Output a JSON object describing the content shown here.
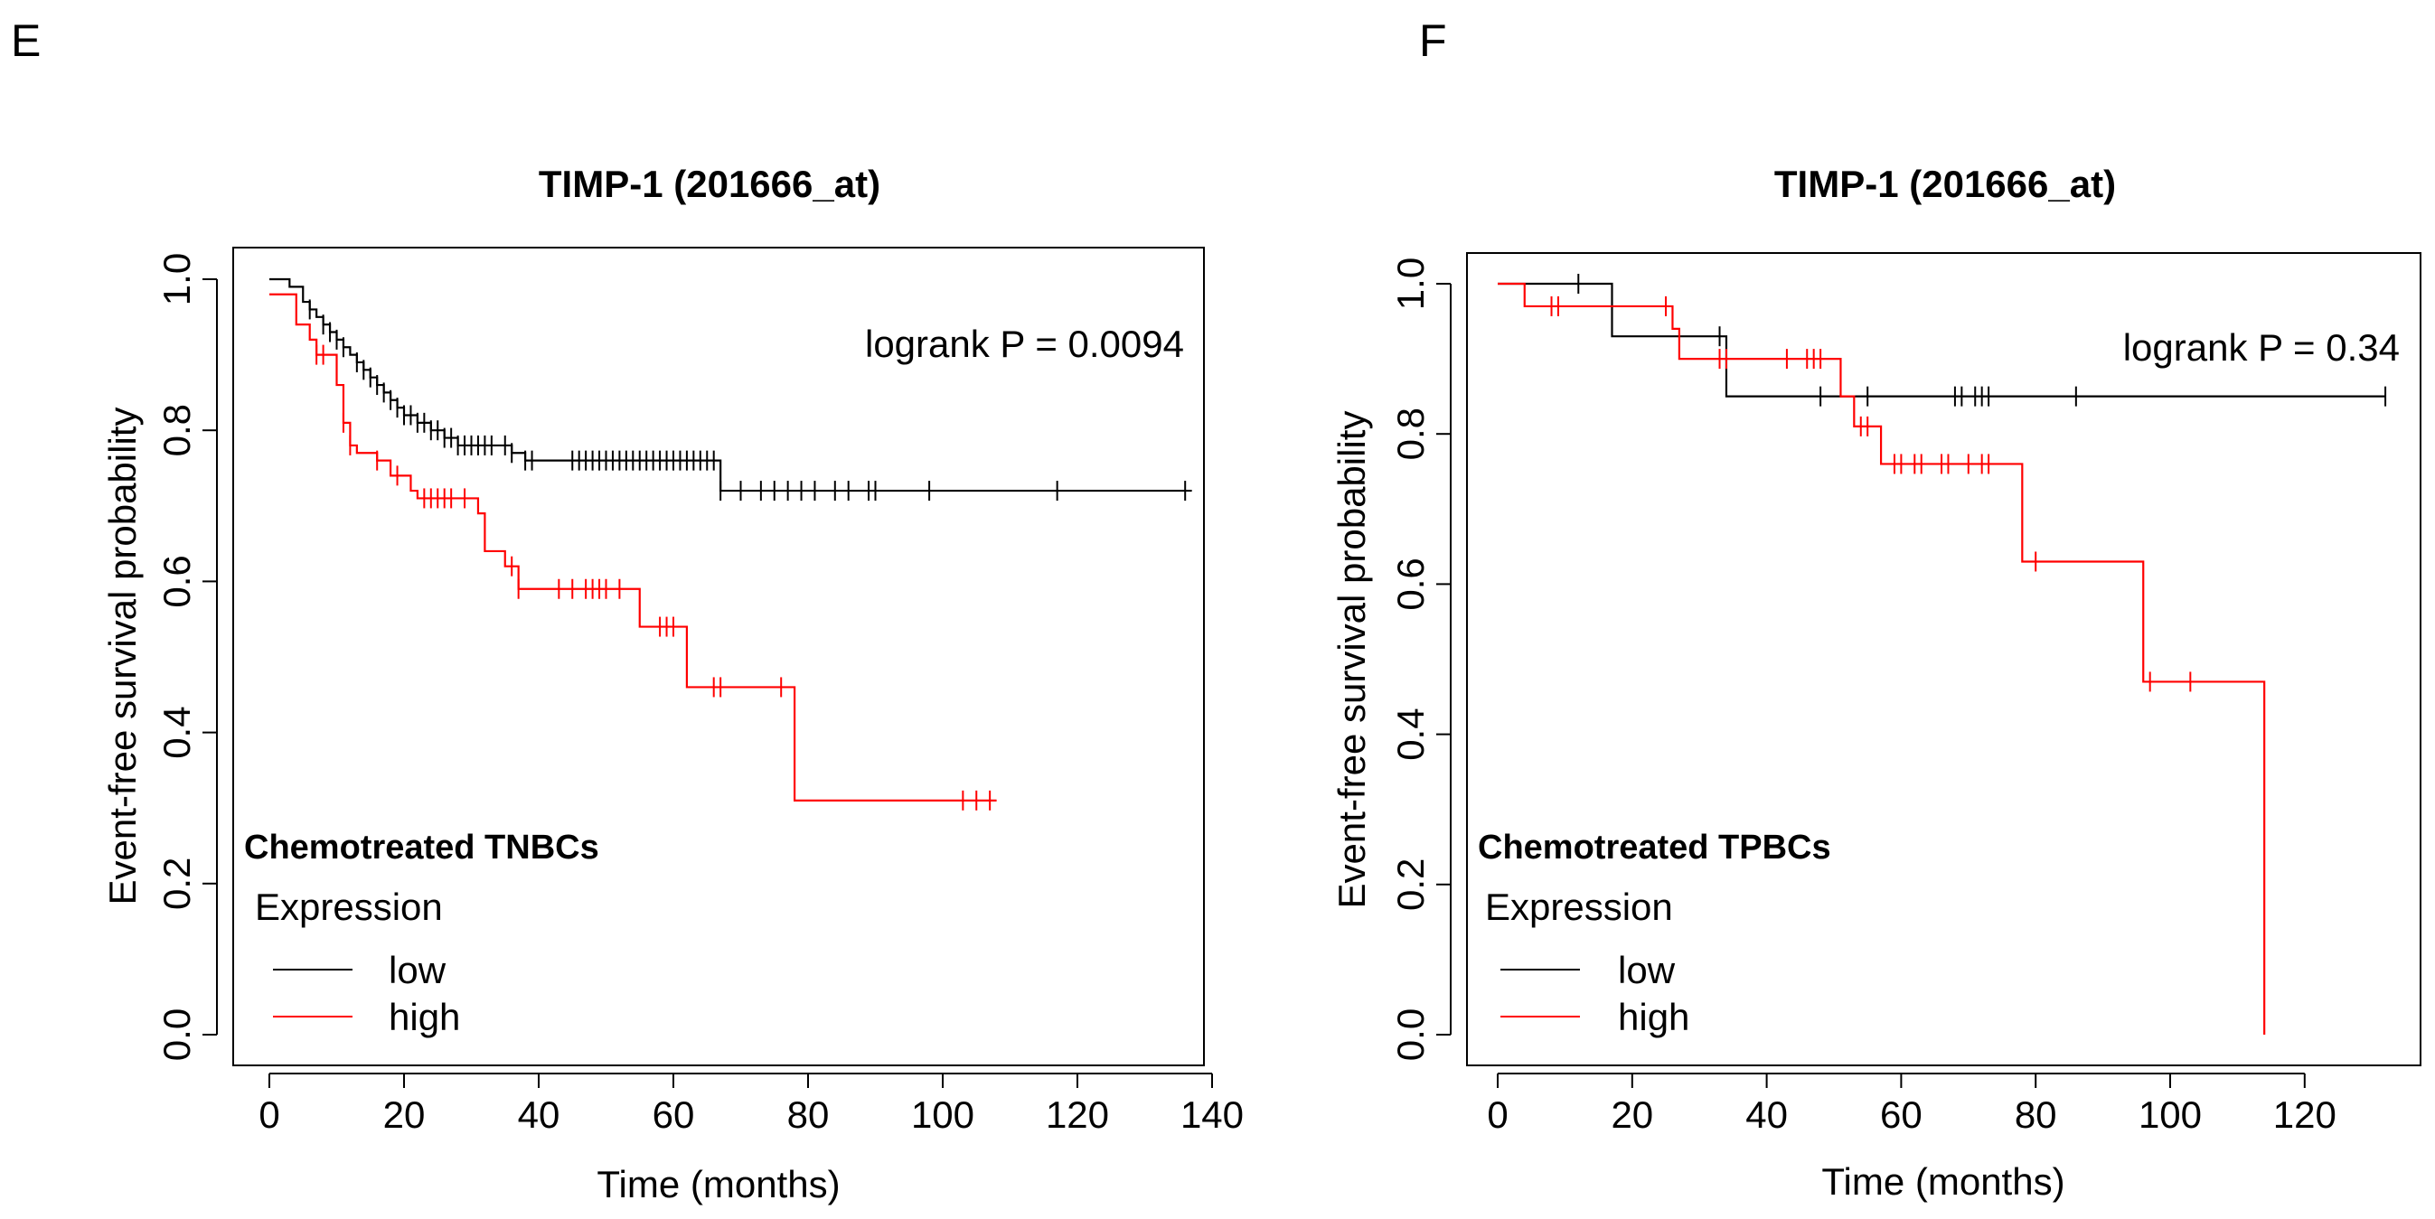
{
  "chart_data": [
    {
      "panel_label": "E",
      "type": "line",
      "title": "TIMP-1 (201666_at)",
      "xlabel": "Time (months)",
      "ylabel": "Event-free survival probability",
      "xlim": [
        0,
        140
      ],
      "ylim": [
        0,
        1
      ],
      "xticks": [
        "0",
        "20",
        "40",
        "60",
        "80",
        "100",
        "120",
        "140"
      ],
      "yticks": [
        "0.0",
        "0.2",
        "0.4",
        "0.6",
        "0.8",
        "1.0"
      ],
      "annotation": "logrank P = 0.0094",
      "cohort": "Chemotreated TNBCs",
      "legend_title": "Expression",
      "legend_items": [
        "low",
        "high"
      ],
      "colors": {
        "low": "#000000",
        "high": "#ff0000"
      },
      "series": [
        {
          "name": "low",
          "color": "#000000",
          "x_end": 137,
          "steps": [
            [
              0,
              1.0
            ],
            [
              3,
              0.99
            ],
            [
              5,
              0.97
            ],
            [
              6,
              0.96
            ],
            [
              7,
              0.95
            ],
            [
              8,
              0.94
            ],
            [
              9,
              0.93
            ],
            [
              10,
              0.92
            ],
            [
              11,
              0.91
            ],
            [
              12,
              0.9
            ],
            [
              13,
              0.89
            ],
            [
              14,
              0.88
            ],
            [
              15,
              0.87
            ],
            [
              16,
              0.86
            ],
            [
              17,
              0.85
            ],
            [
              18,
              0.84
            ],
            [
              19,
              0.83
            ],
            [
              20,
              0.82
            ],
            [
              22,
              0.81
            ],
            [
              24,
              0.8
            ],
            [
              26,
              0.79
            ],
            [
              28,
              0.78
            ],
            [
              36,
              0.77
            ],
            [
              38,
              0.76
            ],
            [
              67,
              0.72
            ]
          ],
          "censor": [
            6,
            8,
            9,
            10,
            11,
            13,
            14,
            15,
            16,
            17,
            18,
            19,
            20,
            21,
            22,
            23,
            24,
            25,
            26,
            27,
            28,
            29,
            30,
            31,
            32,
            33,
            35,
            36,
            38,
            39,
            45,
            46,
            47,
            48,
            49,
            50,
            51,
            52,
            53,
            54,
            55,
            56,
            57,
            58,
            59,
            60,
            61,
            62,
            63,
            64,
            65,
            66,
            67,
            70,
            73,
            75,
            77,
            79,
            81,
            84,
            86,
            89,
            90,
            98,
            117,
            136
          ]
        },
        {
          "name": "high",
          "color": "#ff0000",
          "x_end": 108,
          "steps": [
            [
              0,
              0.98
            ],
            [
              4,
              0.94
            ],
            [
              6,
              0.92
            ],
            [
              7,
              0.9
            ],
            [
              10,
              0.86
            ],
            [
              11,
              0.81
            ],
            [
              12,
              0.78
            ],
            [
              13,
              0.77
            ],
            [
              16,
              0.76
            ],
            [
              18,
              0.74
            ],
            [
              21,
              0.72
            ],
            [
              22,
              0.71
            ],
            [
              31,
              0.69
            ],
            [
              32,
              0.64
            ],
            [
              35,
              0.62
            ],
            [
              37,
              0.59
            ],
            [
              55,
              0.54
            ],
            [
              62,
              0.46
            ],
            [
              78,
              0.31
            ]
          ],
          "censor": [
            7,
            8,
            11,
            12,
            16,
            19,
            23,
            24,
            25,
            26,
            27,
            29,
            36,
            37,
            43,
            45,
            47,
            48,
            49,
            50,
            52,
            58,
            59,
            60,
            66,
            67,
            76,
            103,
            105,
            107
          ]
        }
      ]
    },
    {
      "panel_label": "F",
      "type": "line",
      "title": "TIMP-1 (201666_at)",
      "xlabel": "Time (months)",
      "ylabel": "Event-free survival probability",
      "xlim": [
        0,
        140
      ],
      "ylim": [
        0,
        1
      ],
      "xticks": [
        "0",
        "20",
        "40",
        "60",
        "80",
        "100",
        "120"
      ],
      "yticks": [
        "0.0",
        "0.2",
        "0.4",
        "0.6",
        "0.8",
        "1.0"
      ],
      "annotation": "logrank P = 0.34",
      "cohort": "Chemotreated TPBCs",
      "legend_title": "Expression",
      "legend_items": [
        "low",
        "high"
      ],
      "colors": {
        "low": "#000000",
        "high": "#ff0000"
      },
      "series": [
        {
          "name": "low",
          "color": "#000000",
          "x_end": 132,
          "steps": [
            [
              0,
              1.0
            ],
            [
              17,
              0.93
            ],
            [
              34,
              0.85
            ]
          ],
          "censor": [
            12,
            33,
            48,
            55,
            68,
            69,
            71,
            72,
            73,
            86,
            132
          ]
        },
        {
          "name": "high",
          "color": "#ff0000",
          "x_end": 114,
          "steps": [
            [
              0,
              1.0
            ],
            [
              4,
              0.97
            ],
            [
              26,
              0.94
            ],
            [
              27,
              0.9
            ],
            [
              51,
              0.85
            ],
            [
              53,
              0.81
            ],
            [
              57,
              0.76
            ],
            [
              78,
              0.63
            ],
            [
              96,
              0.47
            ],
            [
              114,
              0.0
            ]
          ],
          "censor": [
            8,
            9,
            25,
            33,
            34,
            43,
            46,
            47,
            48,
            54,
            55,
            59,
            60,
            62,
            63,
            66,
            67,
            70,
            72,
            73,
            80,
            97,
            103
          ]
        }
      ]
    }
  ]
}
